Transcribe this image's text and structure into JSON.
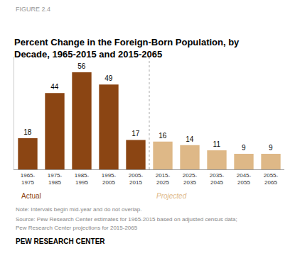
{
  "chart_data": {
    "type": "bar",
    "title": "Percent Change in the Foreign-Born Population, by\nDecade, 1965-2015 and 2015-2065",
    "categories": [
      "1965-\n1975",
      "1975-\n1985",
      "1985-\n1995",
      "1995-\n2005",
      "2005-\n2015",
      "2015-\n2025",
      "2025-\n2035",
      "2035-\n2045",
      "2045-\n2055",
      "2055-\n2065"
    ],
    "series": [
      {
        "name": "Actual",
        "color": "#8B4513",
        "values": [
          18,
          44,
          56,
          49,
          17,
          null,
          null,
          null,
          null,
          null
        ]
      },
      {
        "name": "Projected",
        "color": "#DEB887",
        "values": [
          null,
          null,
          null,
          null,
          null,
          16,
          14,
          11,
          9,
          9
        ]
      }
    ],
    "ylim": [
      0,
      65
    ],
    "grid": false,
    "data_labels": true,
    "tick_labels": "x",
    "annotations": [
      "FIGURE 2.4",
      "Note: Intervals begin mid-year and do not overlap.",
      "Source: Pew Research Center estimates for 1965-2015 based on adjusted census data;",
      "Pew Research Center projections for 2015-2065",
      "PEW RESEARCH CENTER"
    ]
  }
}
